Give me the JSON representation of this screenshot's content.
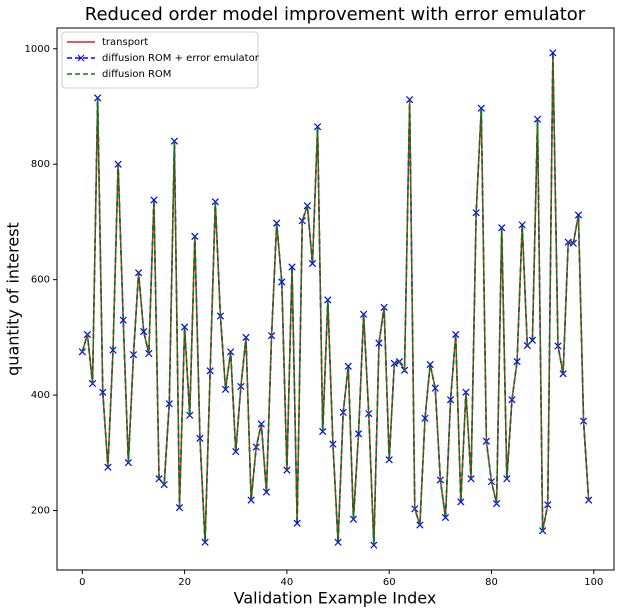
{
  "chart_data": {
    "type": "line",
    "title": "Reduced order model improvement with error emulator",
    "xlabel": "Validation Example Index",
    "ylabel": "quantity of interest",
    "x": [
      0,
      1,
      2,
      3,
      4,
      5,
      6,
      7,
      8,
      9,
      10,
      11,
      12,
      13,
      14,
      15,
      16,
      17,
      18,
      19,
      20,
      21,
      22,
      23,
      24,
      25,
      26,
      27,
      28,
      29,
      30,
      31,
      32,
      33,
      34,
      35,
      36,
      37,
      38,
      39,
      40,
      41,
      42,
      43,
      44,
      45,
      46,
      47,
      48,
      49,
      50,
      51,
      52,
      53,
      54,
      55,
      56,
      57,
      58,
      59,
      60,
      61,
      62,
      63,
      64,
      65,
      66,
      67,
      68,
      69,
      70,
      71,
      72,
      73,
      74,
      75,
      76,
      77,
      78,
      79,
      80,
      81,
      82,
      83,
      84,
      85,
      86,
      87,
      88,
      89,
      90,
      91,
      92,
      93,
      94,
      95,
      96,
      97,
      98,
      99
    ],
    "series": [
      {
        "name": "transport",
        "color": "#d62728",
        "dash": false,
        "marker": false,
        "values": [
          475,
          505,
          420,
          915,
          405,
          275,
          478,
          800,
          530,
          283,
          470,
          612,
          510,
          472,
          738,
          255,
          245,
          385,
          840,
          205,
          518,
          365,
          675,
          325,
          145,
          442,
          735,
          537,
          410,
          475,
          302,
          415,
          500,
          218,
          310,
          350,
          232,
          503,
          698,
          596,
          270,
          622,
          178,
          702,
          728,
          628,
          865,
          337,
          565,
          315,
          145,
          370,
          450,
          185,
          333,
          540,
          368,
          140,
          490,
          552,
          288,
          455,
          458,
          443,
          912,
          203,
          175,
          360,
          453,
          412,
          253,
          188,
          392,
          505,
          215,
          405,
          255,
          716,
          897,
          320,
          250,
          212,
          690,
          255,
          392,
          458,
          695,
          486,
          495,
          878,
          165,
          210,
          993,
          485,
          437,
          665,
          663,
          712,
          355,
          218
        ]
      },
      {
        "name": "diffusion ROM + error emulator",
        "color": "#0000ff",
        "dash": true,
        "marker": true,
        "values": [
          475,
          505,
          420,
          915,
          405,
          275,
          478,
          800,
          530,
          283,
          470,
          612,
          510,
          472,
          738,
          255,
          245,
          385,
          840,
          205,
          518,
          365,
          675,
          325,
          145,
          442,
          735,
          537,
          410,
          475,
          302,
          415,
          500,
          218,
          310,
          350,
          232,
          503,
          698,
          596,
          270,
          622,
          178,
          702,
          728,
          628,
          865,
          337,
          565,
          315,
          145,
          370,
          450,
          185,
          333,
          540,
          368,
          140,
          490,
          552,
          288,
          455,
          458,
          443,
          912,
          203,
          175,
          360,
          453,
          412,
          253,
          188,
          392,
          505,
          215,
          405,
          255,
          716,
          897,
          320,
          250,
          212,
          690,
          255,
          392,
          458,
          695,
          486,
          495,
          878,
          165,
          210,
          993,
          485,
          437,
          665,
          663,
          712,
          355,
          218
        ]
      },
      {
        "name": "diffusion ROM",
        "color": "#008000",
        "dash": true,
        "marker": false,
        "values": [
          475,
          505,
          420,
          915,
          405,
          275,
          478,
          800,
          530,
          283,
          470,
          612,
          510,
          472,
          738,
          255,
          245,
          385,
          840,
          205,
          518,
          365,
          675,
          325,
          145,
          442,
          735,
          537,
          410,
          475,
          302,
          415,
          500,
          218,
          310,
          350,
          232,
          503,
          698,
          596,
          270,
          622,
          178,
          702,
          728,
          628,
          865,
          337,
          565,
          315,
          145,
          370,
          450,
          185,
          333,
          540,
          368,
          140,
          490,
          552,
          288,
          455,
          458,
          443,
          912,
          203,
          175,
          360,
          453,
          412,
          253,
          188,
          392,
          505,
          215,
          405,
          255,
          716,
          897,
          320,
          250,
          212,
          690,
          255,
          392,
          458,
          695,
          486,
          495,
          878,
          165,
          210,
          993,
          485,
          437,
          665,
          663,
          712,
          355,
          218
        ]
      }
    ],
    "xlim": [
      -4.95,
      103.95
    ],
    "xticks": [
      0,
      20,
      40,
      60,
      80,
      100
    ],
    "ylim": [
      97,
      1036
    ],
    "yticks": [
      200,
      400,
      600,
      800,
      1000
    ],
    "legend": "upper left",
    "grid": false
  }
}
